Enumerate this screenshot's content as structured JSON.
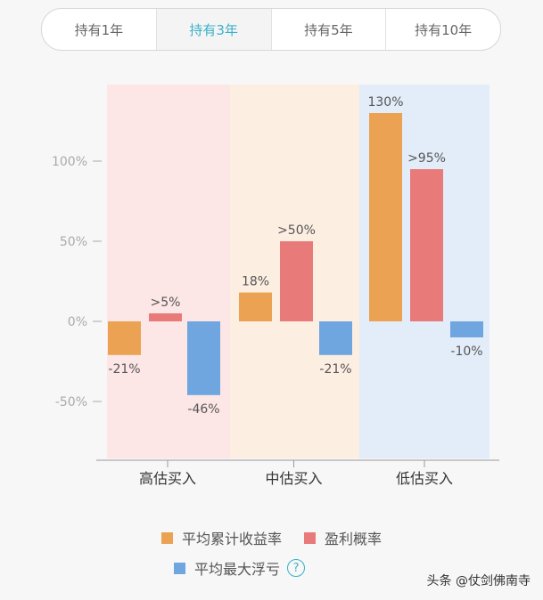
{
  "tabs": [
    {
      "label": "持有1年"
    },
    {
      "label": "持有3年",
      "active": true
    },
    {
      "label": "持有5年"
    },
    {
      "label": "持有10年"
    }
  ],
  "chart_data": {
    "type": "bar",
    "categories": [
      "高估买入",
      "中估买入",
      "低估买入"
    ],
    "yticks": [
      "100%",
      "50%",
      "0%",
      "-50%"
    ],
    "ytick_values": [
      100,
      50,
      0,
      -50
    ],
    "series": [
      {
        "name": "平均累计收益率",
        "color": "#eba353",
        "values": [
          -21,
          18,
          130
        ],
        "labels": [
          "-21%",
          "18%",
          "130%"
        ]
      },
      {
        "name": "盈利概率",
        "color": "#e87a7a",
        "values": [
          5,
          50,
          95
        ],
        "labels": [
          ">5%",
          ">50%",
          ">95%"
        ]
      },
      {
        "name": "平均最大浮亏",
        "color": "#6fa6e0",
        "values": [
          -46,
          -21,
          -10
        ],
        "labels": [
          "-46%",
          "-21%",
          "-10%"
        ]
      }
    ],
    "zone_colors": [
      "#fde6e6",
      "#fdeee2",
      "#e3edf9"
    ]
  },
  "legend_help": "?",
  "watermark": "头条 @仗剑佛南寺"
}
